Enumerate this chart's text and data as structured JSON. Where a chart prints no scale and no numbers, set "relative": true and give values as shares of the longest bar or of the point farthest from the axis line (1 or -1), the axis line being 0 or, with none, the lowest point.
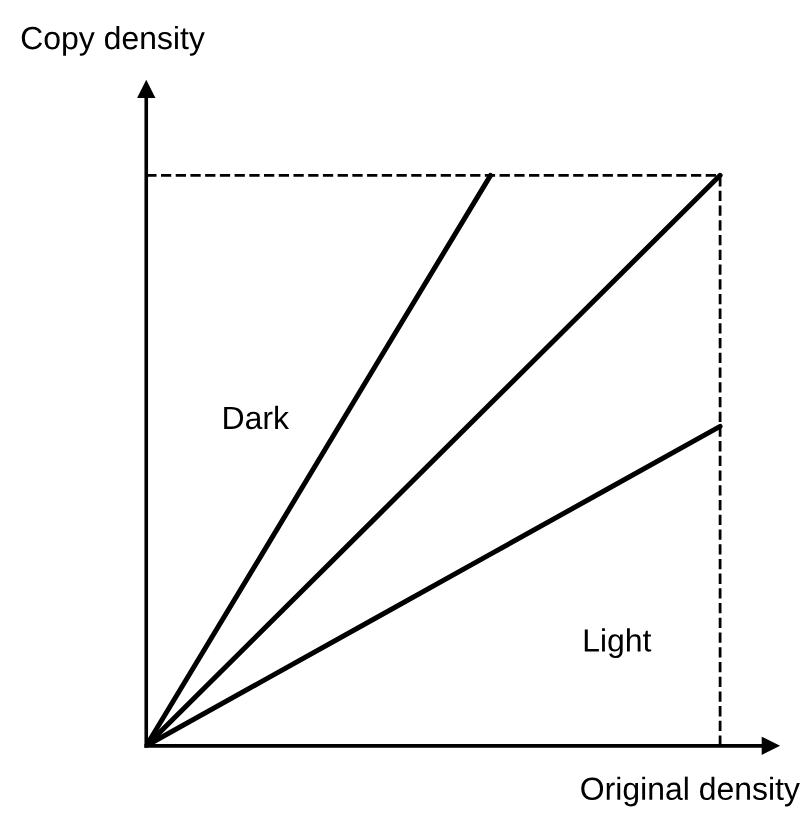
{
  "chart_data": {
    "type": "line",
    "relative": true,
    "xlabel": "Original density",
    "ylabel": "Copy density",
    "categories": [
      null,
      null,
      null,
      null,
      null,
      null
    ],
    "series": [
      {
        "values": [
          0,
          0.333,
          0.667,
          1,
          null,
          null
        ],
        "color": "#000000"
      },
      {
        "values": [
          0,
          0.2,
          0.4,
          0.6,
          0.8,
          1
        ],
        "color": "#000000"
      },
      {
        "values": [
          0,
          0.112,
          0.224,
          0.336,
          0.448,
          0.56
        ],
        "color": "#000000"
      }
    ],
    "line_style": "solid",
    "marker": "none",
    "annotations": [
      "Dark",
      "Light"
    ]
  }
}
